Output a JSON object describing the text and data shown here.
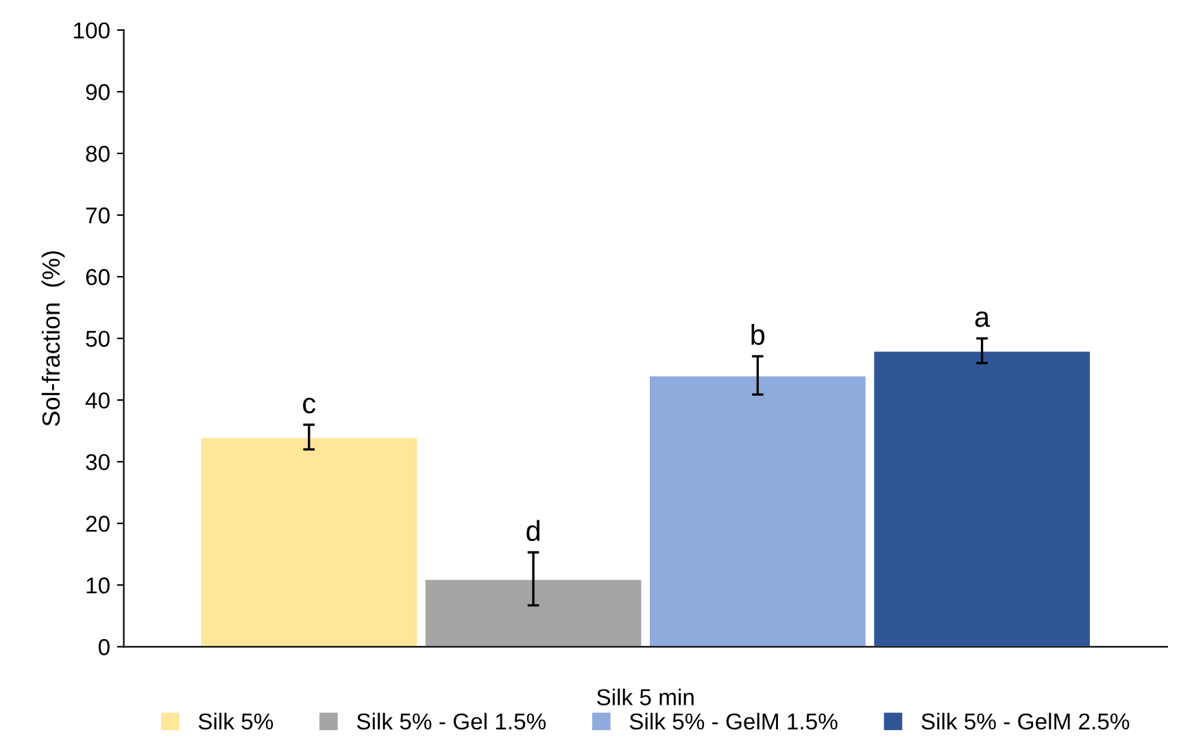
{
  "chart_data": {
    "type": "bar",
    "ylabel": "Sol-fraction  (%)",
    "categories": [
      "Silk 5 min"
    ],
    "series": [
      {
        "name": "Silk 5%",
        "color": "#ffe699",
        "values": [
          34
        ],
        "errors": [
          2
        ]
      },
      {
        "name": "Silk 5% - Gel 1.5%",
        "color": "#a5a5a5",
        "values": [
          11
        ],
        "errors": [
          4.3
        ]
      },
      {
        "name": "Silk 5% - GelM 1.5%",
        "color": "#8faadc",
        "values": [
          44
        ],
        "errors": [
          3.1
        ]
      },
      {
        "name": "Silk 5% - GelM 2.5%",
        "color": "#2f5597",
        "values": [
          48
        ],
        "errors": [
          2
        ]
      }
    ],
    "annotations": [
      "c",
      "d",
      "b",
      "a"
    ],
    "ylim": [
      0,
      100
    ],
    "yticks": [
      0,
      10,
      20,
      30,
      40,
      50,
      60,
      70,
      80,
      90,
      100
    ],
    "grid": false,
    "legend": "bottom"
  }
}
